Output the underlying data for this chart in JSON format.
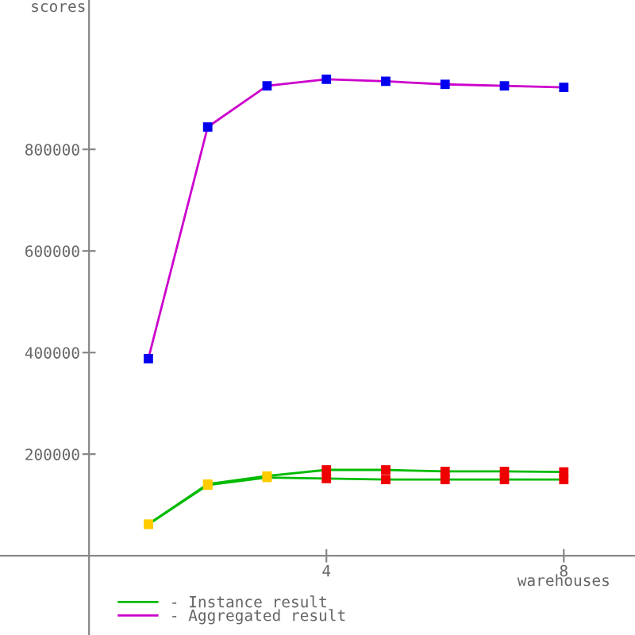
{
  "chart_data": {
    "type": "line",
    "xlabel": "warehouses",
    "ylabel": "scores",
    "x": [
      1,
      2,
      3,
      4,
      5,
      6,
      7,
      8
    ],
    "series": [
      {
        "name": "- Instance result",
        "color": "#00bb00",
        "colors": [
          "#ffcc00",
          "#ffcc00",
          "#ffcc00",
          "#ee0000",
          "#ee0000",
          "#ee0000",
          "#ee0000",
          "#ee0000"
        ],
        "values": [
          62000,
          141000,
          157000,
          169000,
          169000,
          166000,
          166000,
          165000
        ]
      },
      {
        "color": "#00bb00",
        "colors": [
          "#ffcc00",
          "#ffcc00",
          "#ffcc00",
          "#ee0000",
          "#ee0000",
          "#ee0000",
          "#ee0000",
          "#ee0000"
        ],
        "values": [
          62000,
          139000,
          154000,
          152000,
          150000,
          150000,
          150000,
          150000
        ]
      },
      {
        "name": "- Aggregated result",
        "color": "#cc00cc",
        "colors": [
          "#0000ee",
          "#0000ee",
          "#0000ee",
          "#0000ee",
          "#0000ee",
          "#0000ee",
          "#0000ee",
          "#0000ee"
        ],
        "values": [
          388000,
          844000,
          925000,
          938000,
          934000,
          928000,
          925000,
          922000
        ]
      }
    ],
    "xlim": [
      -1.5,
      9.2
    ],
    "ylim": [
      -156000,
      1094000
    ],
    "xticks": [
      4,
      8
    ],
    "yticks": [
      200000,
      400000,
      600000,
      800000
    ],
    "marker": "square",
    "line_style": "solid",
    "grid": false,
    "legend": "bottom left"
  }
}
